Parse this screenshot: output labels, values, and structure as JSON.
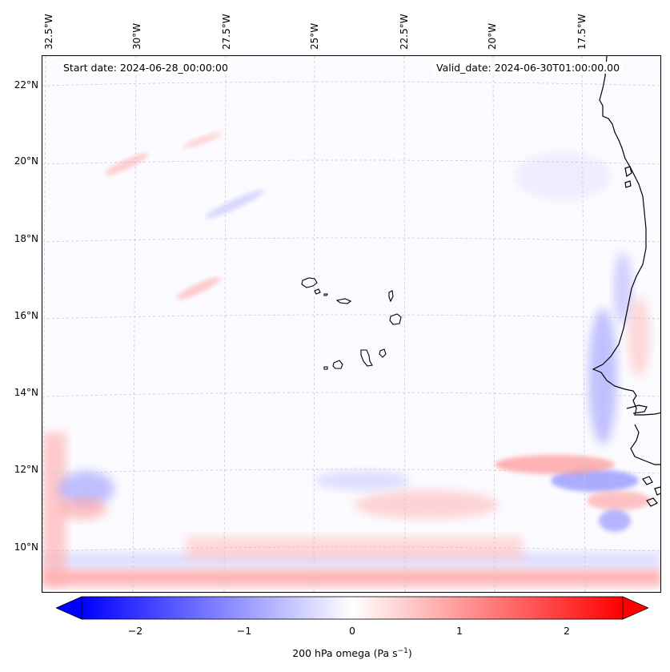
{
  "map": {
    "start_date": "Start date: 2024-06-28_00:00:00",
    "valid_date": "Valid_date: 2024-06-30T01:00:00.00",
    "lon_labels": [
      "32.5°W",
      "30°W",
      "27.5°W",
      "25°W",
      "22.5°W",
      "20°W",
      "17.5°W"
    ],
    "lat_labels": [
      "22°N",
      "20°N",
      "18°N",
      "16°N",
      "14°N",
      "12°N",
      "10°N"
    ]
  },
  "colorbar": {
    "ticks": [
      "−2",
      "−1",
      "0",
      "1",
      "2"
    ],
    "label_main": "200 hPa omega (Pa s",
    "label_exp": "−1",
    "label_end": ")",
    "min": -2.5,
    "max": 2.5,
    "color_low": "#0000ff",
    "color_mid": "#ffffff",
    "color_high": "#ff0000"
  },
  "colors": {
    "coastline": "#000000",
    "grid": "#c8c8c8"
  }
}
